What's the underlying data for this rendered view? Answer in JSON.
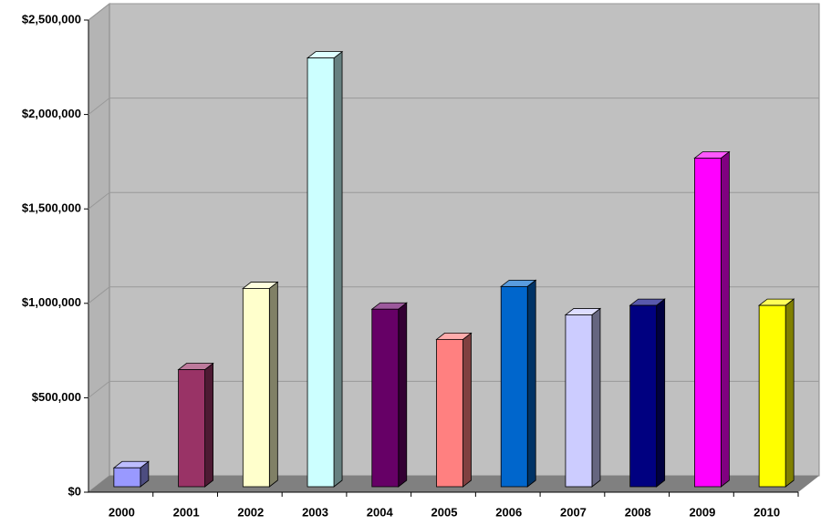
{
  "chart_data": {
    "type": "bar3d",
    "categories": [
      "2000",
      "2001",
      "2002",
      "2003",
      "2004",
      "2005",
      "2006",
      "2007",
      "2008",
      "2009",
      "2010"
    ],
    "values": [
      100000,
      620000,
      1050000,
      2270000,
      940000,
      780000,
      1060000,
      910000,
      960000,
      1740000,
      960000
    ],
    "colors": [
      "#9999ff",
      "#993366",
      "#ffffcc",
      "#ccffff",
      "#660066",
      "#ff8080",
      "#0066cc",
      "#ccccff",
      "#000080",
      "#ff00ff",
      "#ffff00"
    ],
    "ylim": [
      0,
      2500000
    ],
    "yticks": [
      {
        "value": 0,
        "label": "$0"
      },
      {
        "value": 500000,
        "label": "$500,000"
      },
      {
        "value": 1000000,
        "label": "$1,000,000"
      },
      {
        "value": 1500000,
        "label": "$1,500,000"
      },
      {
        "value": 2000000,
        "label": "$2,000,000"
      },
      {
        "value": 2500000,
        "label": "$2,500,000"
      }
    ],
    "grid": true
  }
}
